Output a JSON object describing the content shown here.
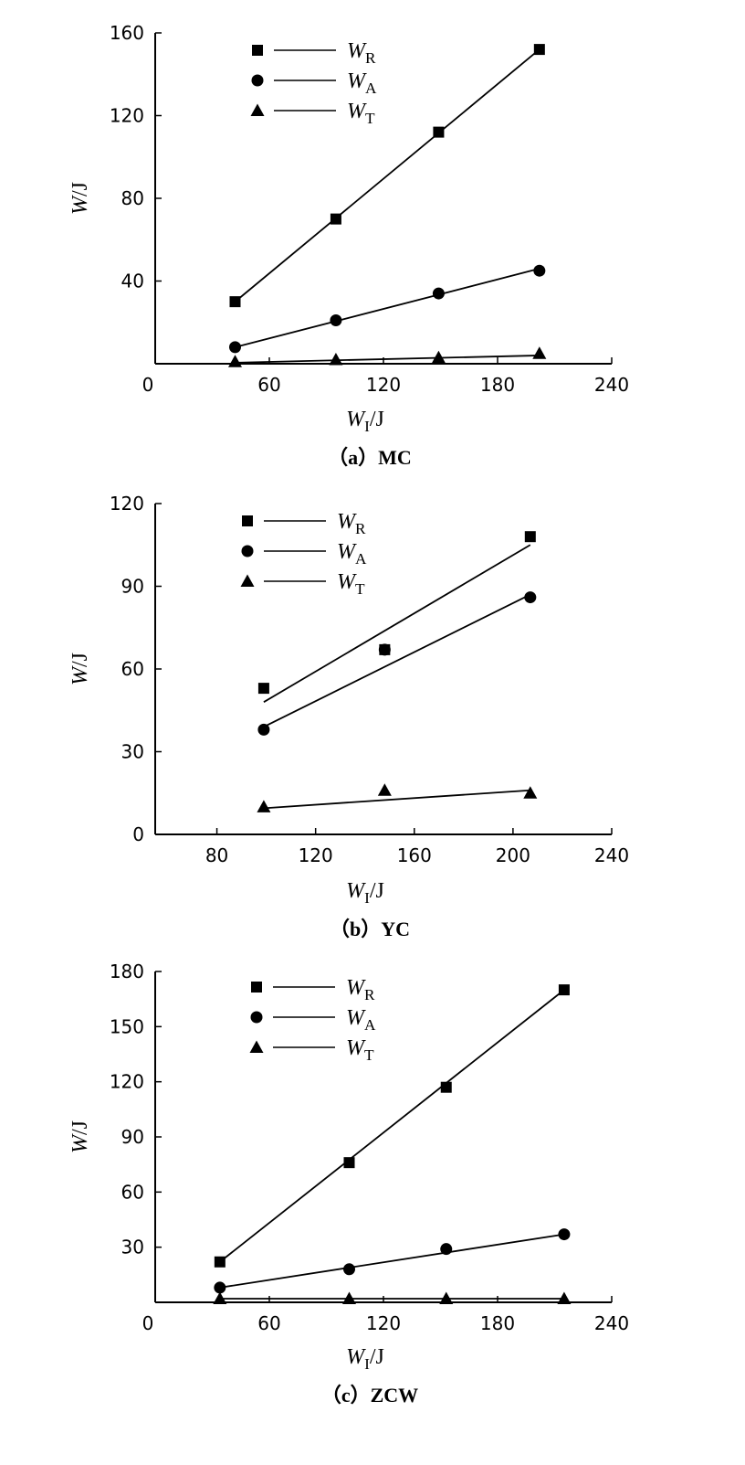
{
  "chart_data": [
    {
      "type": "line",
      "caption": "（a）MC",
      "xlabel": "W_I/J",
      "ylabel": "W/J",
      "xlim": [
        0,
        240
      ],
      "ylim": [
        0,
        160
      ],
      "xticks": [
        "0",
        "60",
        "120",
        "180",
        "240"
      ],
      "yticks": [
        "40",
        "80",
        "120",
        "160"
      ],
      "x": [
        42,
        95,
        149,
        202
      ],
      "series": [
        {
          "name": "W_R",
          "marker": "square",
          "values": [
            30,
            70,
            112,
            152
          ],
          "fit": [
            [
              42,
              30
            ],
            [
              202,
              152
            ]
          ]
        },
        {
          "name": "W_A",
          "marker": "circle",
          "values": [
            8,
            21,
            34,
            45
          ],
          "fit": [
            [
              42,
              8
            ],
            [
              202,
              46
            ]
          ]
        },
        {
          "name": "W_T",
          "marker": "triangle",
          "values": [
            1,
            2,
            3,
            5
          ],
          "fit": [
            [
              42,
              0.5
            ],
            [
              202,
              4
            ]
          ]
        }
      ],
      "legend": "top-left"
    },
    {
      "type": "line",
      "caption": "（b）YC",
      "xlabel": "W_I/J",
      "ylabel": "W/J",
      "xlim": [
        55,
        240
      ],
      "ylim": [
        0,
        120
      ],
      "xticks": [
        "80",
        "120",
        "160",
        "200",
        "240"
      ],
      "yticks": [
        "0",
        "30",
        "60",
        "90",
        "120"
      ],
      "x": [
        99,
        148,
        207
      ],
      "series": [
        {
          "name": "W_R",
          "marker": "square",
          "values": [
            53,
            67,
            108
          ],
          "fit": [
            [
              99,
              48
            ],
            [
              207,
              105
            ]
          ]
        },
        {
          "name": "W_A",
          "marker": "circle",
          "values": [
            38,
            67,
            86
          ],
          "fit": [
            [
              99,
              39
            ],
            [
              207,
              87
            ]
          ]
        },
        {
          "name": "W_T",
          "marker": "triangle",
          "values": [
            10,
            16,
            15
          ],
          "fit": [
            [
              99,
              9.5
            ],
            [
              207,
              16
            ]
          ]
        }
      ],
      "legend": "top-left"
    },
    {
      "type": "line",
      "caption": "（c）ZCW",
      "xlabel": "W_I/J",
      "ylabel": "W/J",
      "xlim": [
        0,
        240
      ],
      "ylim": [
        0,
        180
      ],
      "xticks": [
        "0",
        "60",
        "120",
        "180",
        "240"
      ],
      "yticks": [
        "30",
        "60",
        "90",
        "120",
        "150",
        "180"
      ],
      "x": [
        34,
        102,
        153,
        215
      ],
      "series": [
        {
          "name": "W_R",
          "marker": "square",
          "values": [
            22,
            76,
            117,
            170
          ],
          "fit": [
            [
              34,
              22
            ],
            [
              215,
              170
            ]
          ]
        },
        {
          "name": "W_A",
          "marker": "circle",
          "values": [
            8,
            18,
            29,
            37
          ],
          "fit": [
            [
              34,
              8
            ],
            [
              215,
              37
            ]
          ]
        },
        {
          "name": "W_T",
          "marker": "triangle",
          "values": [
            2,
            2,
            2,
            2
          ],
          "fit": [
            [
              34,
              2
            ],
            [
              215,
              2
            ]
          ]
        }
      ],
      "legend": "top-left"
    }
  ]
}
